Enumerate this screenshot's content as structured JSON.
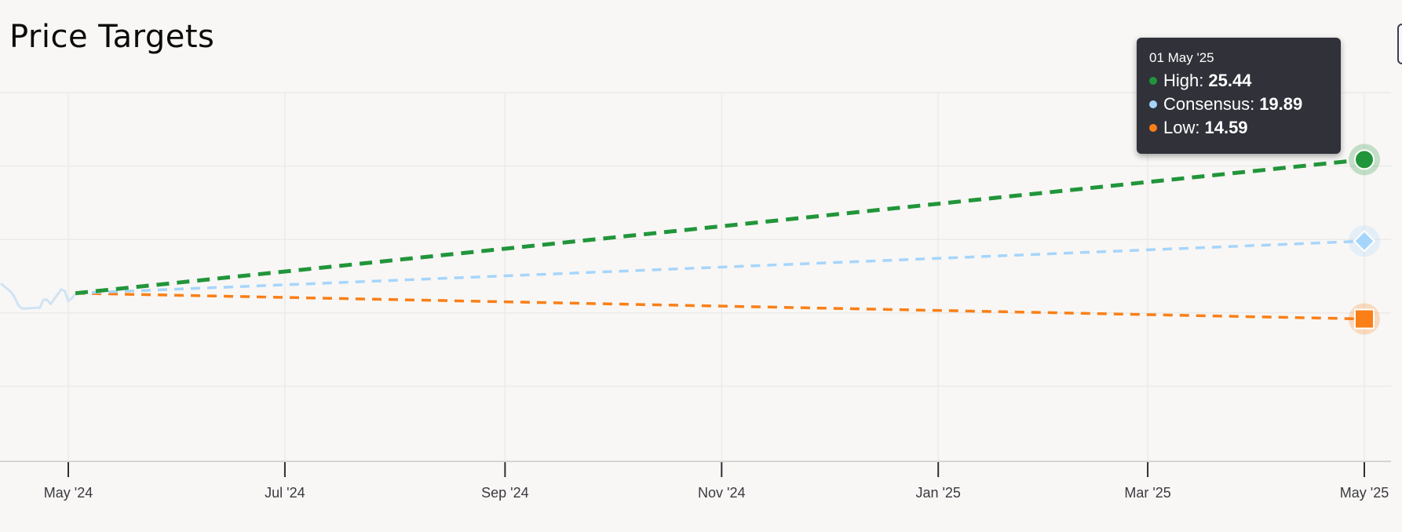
{
  "chart_data": {
    "type": "line",
    "title": "Price Targets",
    "xlabel": "",
    "ylabel": "",
    "x_tick_labels": [
      "May '24",
      "Jul '24",
      "Sep '24",
      "Nov '24",
      "Jan '25",
      "Mar '25",
      "May '25"
    ],
    "x_tick_dates": [
      "2024-05-01",
      "2024-07-01",
      "2024-09-01",
      "2024-11-01",
      "2025-01-01",
      "2025-03-01",
      "2025-05-01"
    ],
    "xlim": [
      "2024-04-12",
      "2025-05-08"
    ],
    "ylim": [
      5,
      30
    ],
    "y_gridlines": [
      10,
      15,
      20,
      25,
      30
    ],
    "y_tick_labels_visible": false,
    "grid": true,
    "price_history": {
      "color": "#cfe3f5",
      "points": [
        [
          "2024-04-12",
          17.0
        ],
        [
          "2024-04-15",
          16.4
        ],
        [
          "2024-04-16",
          16.0
        ],
        [
          "2024-04-17",
          15.5
        ],
        [
          "2024-04-18",
          15.3
        ],
        [
          "2024-04-19",
          15.3
        ],
        [
          "2024-04-22",
          15.35
        ],
        [
          "2024-04-23",
          15.35
        ],
        [
          "2024-04-24",
          15.9
        ],
        [
          "2024-04-25",
          15.9
        ],
        [
          "2024-04-26",
          15.6
        ],
        [
          "2024-04-29",
          16.6
        ],
        [
          "2024-04-30",
          16.5
        ],
        [
          "2024-05-01",
          15.8
        ],
        [
          "2024-05-02",
          16.0
        ],
        [
          "2024-05-03",
          16.3
        ]
      ]
    },
    "series": [
      {
        "name": "High",
        "color": "#21953a",
        "marker": "circle",
        "dashed": true,
        "points": [
          [
            "2024-05-03",
            16.34
          ],
          [
            "2025-05-01",
            25.44
          ]
        ]
      },
      {
        "name": "Consensus",
        "color": "#a6d5fb",
        "marker": "diamond",
        "dashed": true,
        "points": [
          [
            "2024-05-03",
            16.34
          ],
          [
            "2025-05-01",
            19.89
          ]
        ]
      },
      {
        "name": "Low",
        "color": "#fb7f17",
        "marker": "square",
        "dashed": true,
        "points": [
          [
            "2024-05-03",
            16.34
          ],
          [
            "2025-05-01",
            14.59
          ]
        ]
      }
    ],
    "tooltip": {
      "date": "01 May '25",
      "rows": [
        {
          "label": "High:",
          "value": "25.44",
          "color": "#21953a"
        },
        {
          "label": "Consensus:",
          "value": "19.89",
          "color": "#a6d5fb"
        },
        {
          "label": "Low:",
          "value": "14.59",
          "color": "#fb7f17"
        }
      ]
    }
  }
}
